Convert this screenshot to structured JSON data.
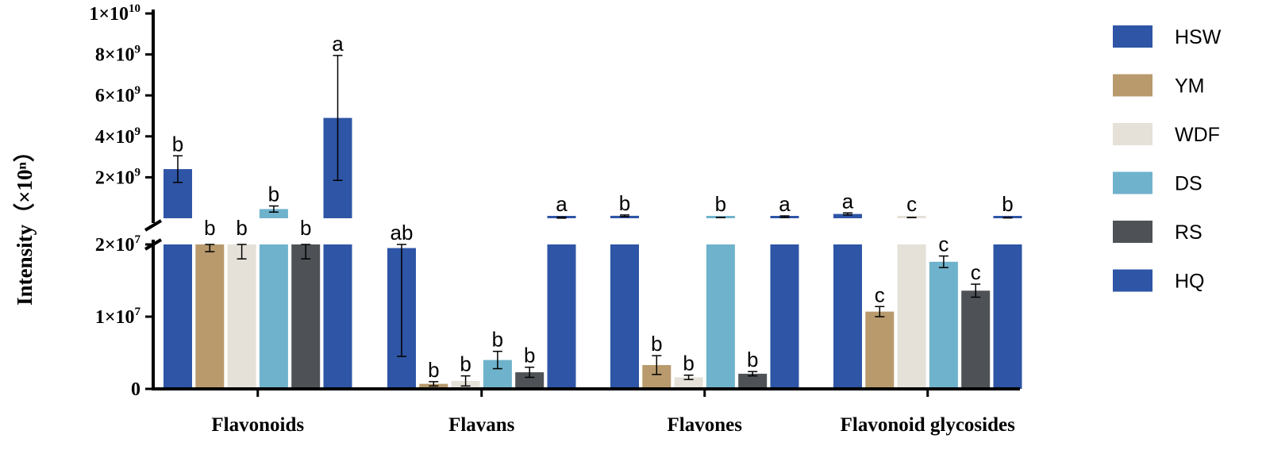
{
  "chart_data": {
    "type": "bar",
    "ylabel": "Intensity（×10ⁿ）",
    "categories": [
      "Flavonoids",
      "Flavans",
      "Flavones",
      "Flavonoid glycosides"
    ],
    "axis": {
      "broken": true,
      "lower_range": [
        0,
        20000000
      ],
      "upper_range": [
        0,
        10000000000
      ],
      "lower_ticks": [
        {
          "value": 0,
          "label": "0"
        },
        {
          "value": 10000000,
          "label": "1×10",
          "exp": "7"
        },
        {
          "value": 20000000,
          "label": "2×10",
          "exp": "7"
        }
      ],
      "upper_ticks": [
        {
          "value": 2000000000,
          "label": "2×10",
          "exp": "9"
        },
        {
          "value": 4000000000,
          "label": "4×10",
          "exp": "9"
        },
        {
          "value": 6000000000,
          "label": "6×10",
          "exp": "9"
        },
        {
          "value": 8000000000,
          "label": "8×10",
          "exp": "9"
        },
        {
          "value": 10000000000,
          "label": "1×10",
          "exp": "10"
        }
      ]
    },
    "legend": {
      "position": "right"
    },
    "series": [
      {
        "name": "HSW",
        "color": "#2E55A6",
        "values": [
          2400000000,
          19500000,
          120000000,
          210000000
        ],
        "errors": [
          650000000,
          15000000,
          40000000,
          50000000
        ],
        "labels": [
          "b",
          "ab",
          "b",
          "a"
        ]
      },
      {
        "name": "YM",
        "color": "#B89A6D",
        "values": [
          20000000,
          700000,
          3300000,
          10700000
        ],
        "errors": [
          1000000,
          300000,
          1300000,
          700000
        ],
        "labels": [
          "b",
          "b",
          "b",
          "c"
        ]
      },
      {
        "name": "WDF",
        "color": "#E5E1D8",
        "values": [
          20000000,
          1100000,
          1600000,
          37000000
        ],
        "errors": [
          2000000,
          700000,
          300000,
          3000000
        ],
        "labels": [
          "b",
          "b",
          "b",
          "c"
        ]
      },
      {
        "name": "DS",
        "color": "#6FB2CB",
        "values": [
          450000000,
          4000000,
          34000000,
          17600000
        ],
        "errors": [
          150000000,
          1200000,
          5000000,
          800000
        ],
        "labels": [
          "b",
          "b",
          "b",
          "c"
        ]
      },
      {
        "name": "RS",
        "color": "#4E5256",
        "values": [
          20000000,
          2300000,
          2100000,
          13600000
        ],
        "errors": [
          2000000,
          700000,
          300000,
          900000
        ],
        "labels": [
          "b",
          "b",
          "b",
          "c"
        ]
      },
      {
        "name": "HQ",
        "color": "#2E55A6",
        "values": [
          4900000000,
          30000000,
          75000000,
          25000000
        ],
        "errors": [
          3050000000,
          25000000,
          40000000,
          10000000
        ],
        "labels": [
          "a",
          "a",
          "a",
          "b"
        ]
      }
    ]
  }
}
